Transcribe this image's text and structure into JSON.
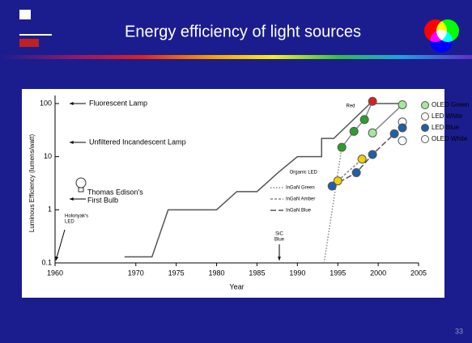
{
  "page_number": "33",
  "chart_data": {
    "type": "line",
    "title": "Energy efficiency of light sources",
    "x_label": "Year",
    "y_label": "Luminous Efficiency (lumens/watt)",
    "xlim": [
      1960,
      2005
    ],
    "xticks": [
      1960,
      1970,
      1975,
      1980,
      1985,
      1990,
      1995,
      2000,
      2005
    ],
    "ylim": [
      0.1,
      100
    ],
    "yticks": [
      0.1,
      1,
      10,
      100
    ],
    "log_y": true,
    "series": [
      {
        "kind": "line",
        "style": "solid",
        "color": "#555555",
        "x": [
          1968.6,
          1972,
          1974,
          1980,
          1982.5,
          1985,
          1987.6,
          1990,
          1993,
          1993,
          1994.5,
          1999,
          2003
        ],
        "values": [
          0.13,
          0.13,
          1,
          1,
          2.2,
          2.2,
          5,
          10,
          10,
          22,
          22,
          100,
          100
        ]
      },
      {
        "kind": "line",
        "style": "solid",
        "color": "#888888",
        "x": [
          1995.5,
          1997,
          1998.3,
          1999.3
        ],
        "values": [
          15,
          30,
          50,
          110
        ]
      },
      {
        "kind": "line",
        "style": "solid",
        "color": "#888888",
        "x": [
          1999.3,
          2003
        ],
        "values": [
          28,
          95
        ]
      },
      {
        "kind": "line",
        "name": "InGaN Green",
        "style": "dotted",
        "color": "#888888",
        "x": [
          1993.3,
          1995.5
        ],
        "values": [
          0.1,
          15
        ]
      },
      {
        "kind": "line",
        "name": "InGaN Amber",
        "style": "dashed",
        "color": "#888888",
        "x": [
          1994.3,
          1998
        ],
        "values": [
          2.8,
          9
        ]
      },
      {
        "kind": "line",
        "name": "InGaN Blue",
        "style": "longdash",
        "color": "#555555",
        "x": [
          1994.3,
          1997.3,
          1999.3,
          2002,
          2003
        ],
        "values": [
          2.8,
          5,
          11,
          27,
          35
        ]
      },
      {
        "kind": "marker",
        "color": "#2aa02a",
        "x": [
          1995.5,
          1997,
          1998.3
        ],
        "values": [
          15,
          30,
          50
        ]
      },
      {
        "kind": "marker",
        "color": "#d62020",
        "x": [
          1999.3
        ],
        "values": [
          110
        ]
      },
      {
        "kind": "marker",
        "color": "#f0d000",
        "x": [
          1995,
          1998
        ],
        "values": [
          3.5,
          9
        ]
      },
      {
        "kind": "marker",
        "name": "OLED Green",
        "color": "#a8e6a0",
        "x": [
          1999.3,
          2003
        ],
        "values": [
          28,
          95
        ]
      },
      {
        "kind": "marker",
        "name": "LED White",
        "color": "#ffffff",
        "x": [
          2003
        ],
        "values": [
          45
        ]
      },
      {
        "kind": "marker",
        "name": "LED Blue",
        "color": "#1f5fa8",
        "x": [
          1994.3,
          1997.3,
          1999.3,
          2002,
          2003
        ],
        "values": [
          2.8,
          5,
          11,
          27,
          35
        ]
      },
      {
        "kind": "marker",
        "name": "OLED White",
        "color": "#ffffff",
        "x": [
          2003
        ],
        "values": [
          20
        ]
      }
    ],
    "annotations": [
      {
        "lines": [
          "Fluorescent Lamp"
        ]
      },
      {
        "lines": [
          "Unfiltered Incandescent Lamp"
        ]
      },
      {
        "lines": [
          "Thomas Edison's",
          "First Bulb"
        ]
      },
      {
        "lines": [
          "Holonyak's",
          "LED"
        ]
      },
      {
        "lines": [
          "SiC",
          "Blue"
        ]
      },
      {
        "lines": [
          "Red"
        ]
      },
      {
        "lines": [
          "Organic LED"
        ]
      }
    ]
  }
}
